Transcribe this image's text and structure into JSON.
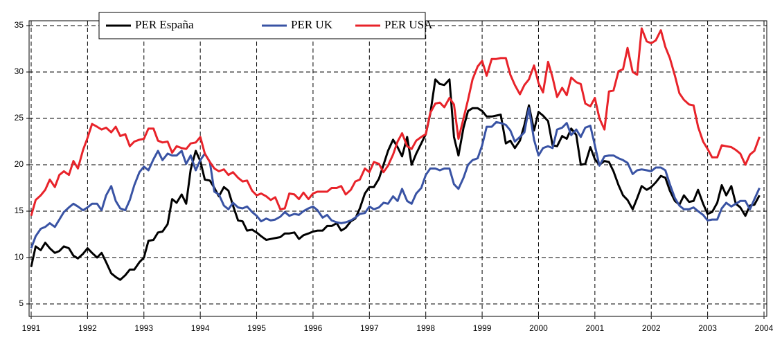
{
  "chart_data": {
    "type": "line",
    "x": [
      1991,
      1991.08,
      1991.17,
      1991.25,
      1991.33,
      1991.42,
      1991.5,
      1991.58,
      1991.67,
      1991.75,
      1991.83,
      1991.92,
      1992,
      1992.08,
      1992.17,
      1992.25,
      1992.33,
      1992.42,
      1992.5,
      1992.58,
      1992.67,
      1992.75,
      1992.83,
      1992.92,
      1993,
      1993.08,
      1993.17,
      1993.25,
      1993.33,
      1993.42,
      1993.5,
      1993.58,
      1993.67,
      1993.75,
      1993.83,
      1993.92,
      1994,
      1994.08,
      1994.17,
      1994.25,
      1994.33,
      1994.42,
      1994.5,
      1994.58,
      1994.67,
      1994.75,
      1994.83,
      1994.92,
      1995,
      1995.08,
      1995.17,
      1995.25,
      1995.33,
      1995.42,
      1995.5,
      1995.58,
      1995.67,
      1995.75,
      1995.83,
      1995.92,
      1996,
      1996.08,
      1996.17,
      1996.25,
      1996.33,
      1996.42,
      1996.5,
      1996.58,
      1996.67,
      1996.75,
      1996.83,
      1996.92,
      1997,
      1997.08,
      1997.17,
      1997.25,
      1997.33,
      1997.42,
      1997.5,
      1997.58,
      1997.67,
      1997.75,
      1997.83,
      1997.92,
      1998,
      1998.08,
      1998.17,
      1998.25,
      1998.33,
      1998.42,
      1998.5,
      1998.58,
      1998.67,
      1998.75,
      1998.83,
      1998.92,
      1999,
      1999.08,
      1999.17,
      1999.25,
      1999.33,
      1999.42,
      1999.5,
      1999.58,
      1999.67,
      1999.75,
      1999.83,
      1999.92,
      2000,
      2000.08,
      2000.17,
      2000.25,
      2000.33,
      2000.42,
      2000.5,
      2000.58,
      2000.67,
      2000.75,
      2000.83,
      2000.92,
      2001,
      2001.08,
      2001.17,
      2001.25,
      2001.33,
      2001.42,
      2001.5,
      2001.58,
      2001.67,
      2001.75,
      2001.83,
      2001.92,
      2002,
      2002.08,
      2002.17,
      2002.25,
      2002.33,
      2002.42,
      2002.5,
      2002.58,
      2002.67,
      2002.75,
      2002.83,
      2002.92,
      2003,
      2003.08,
      2003.17,
      2003.25,
      2003.33,
      2003.42,
      2003.5,
      2003.58,
      2003.67,
      2003.75,
      2003.83,
      2003.92
    ],
    "series": [
      {
        "name": "PER España",
        "color": "#000000",
        "values": [
          9,
          11.2,
          10.8,
          11.6,
          11,
          10.5,
          10.7,
          11.2,
          11,
          10.2,
          9.9,
          10.4,
          11,
          10.5,
          10,
          10.5,
          9.5,
          8.3,
          7.9,
          7.6,
          8.1,
          8.7,
          8.7,
          9.5,
          10,
          11.8,
          11.9,
          12.7,
          12.8,
          13.6,
          16.3,
          15.9,
          16.8,
          15.8,
          19.5,
          21.5,
          20.4,
          18.4,
          18.3,
          17.5,
          16.6,
          17.6,
          17.2,
          15.6,
          14,
          13.9,
          12.9,
          13,
          12.7,
          12.3,
          11.9,
          12,
          12.1,
          12.2,
          12.6,
          12.6,
          12.7,
          12,
          12.4,
          12.6,
          12.8,
          12.9,
          12.9,
          13.4,
          13.4,
          13.7,
          12.9,
          13.2,
          13.9,
          14.2,
          15.3,
          16.9,
          17.6,
          17.6,
          18.5,
          20,
          21.5,
          22.7,
          21.9,
          20.9,
          23,
          20,
          21.2,
          22.3,
          23.3,
          25.5,
          29.2,
          28.7,
          28.6,
          29.2,
          23,
          21,
          24,
          25.8,
          26.1,
          26.1,
          25.8,
          25.2,
          25.2,
          25.3,
          25.4,
          22.3,
          22.6,
          21.8,
          22.6,
          24.3,
          26.4,
          23.7,
          25.7,
          25.3,
          24.7,
          22.1,
          22,
          23.1,
          22.8,
          23.9,
          23.2,
          20,
          20.1,
          21.9,
          20.6,
          20,
          20.4,
          20.3,
          19.3,
          17.8,
          16.7,
          16.2,
          15.2,
          16.4,
          17.7,
          17.3,
          17.6,
          18.1,
          18.8,
          18.6,
          17.2,
          16.1,
          15.7,
          16.7,
          16,
          16.1,
          17.3,
          15.8,
          14.7,
          14.9,
          15.9,
          17.8,
          16.7,
          17.7,
          15.8,
          15.4,
          14.5,
          15.6,
          15.7,
          16.7
        ]
      },
      {
        "name": "PER UK",
        "color": "#3953a4",
        "values": [
          11,
          12.3,
          13.1,
          13.3,
          13.7,
          13.3,
          14.1,
          14.9,
          15.4,
          15.8,
          15.5,
          15.1,
          15.4,
          15.8,
          15.8,
          15.1,
          16.7,
          17.7,
          16.1,
          15.3,
          15.1,
          16.2,
          17.8,
          19.2,
          19.8,
          19.4,
          20.6,
          21.5,
          20.5,
          21.2,
          21,
          21,
          21.5,
          20.1,
          21,
          19.4,
          20.5,
          21.2,
          20.3,
          17.1,
          16.8,
          15.6,
          15.2,
          15.9,
          15.4,
          15.3,
          15.5,
          14.9,
          14.5,
          13.9,
          14.2,
          14,
          14.1,
          14.4,
          14.9,
          14.5,
          14.7,
          14.6,
          15,
          15.3,
          15.5,
          15.1,
          14.3,
          14.6,
          14,
          13.8,
          13.7,
          13.8,
          14,
          14.3,
          14.7,
          14.8,
          15.5,
          15.2,
          15.4,
          15.9,
          15.8,
          16.6,
          16.1,
          17.4,
          16.1,
          15.8,
          16.9,
          17.5,
          18.9,
          19.6,
          19.6,
          19.4,
          19.6,
          19.6,
          17.9,
          17.4,
          18.6,
          20,
          20.5,
          20.7,
          22.1,
          24.1,
          24.1,
          24.6,
          24.5,
          24.3,
          23.7,
          22.5,
          23,
          23.5,
          26.1,
          22.7,
          21,
          21.8,
          22,
          21.8,
          23.8,
          24,
          24.5,
          23.2,
          23.8,
          23,
          24,
          24.2,
          22.1,
          19.9,
          20.9,
          21,
          21,
          20.7,
          20.5,
          20.2,
          19,
          19.4,
          19.5,
          19.4,
          19.3,
          19.7,
          19.7,
          19.4,
          17.9,
          16.4,
          15.6,
          15.2,
          15.2,
          15.4,
          15,
          14.6,
          14,
          14.1,
          14.1,
          15.3,
          15.9,
          15.5,
          15.8,
          16.1,
          16.1,
          15.2,
          16.3,
          17.5
        ]
      },
      {
        "name": "PER USA",
        "color": "#e8232a",
        "values": [
          14.5,
          16.2,
          16.7,
          17.3,
          18.4,
          17.6,
          18.9,
          19.3,
          18.9,
          20.4,
          19.6,
          21.6,
          22.9,
          24.4,
          24.1,
          23.8,
          24,
          23.5,
          24.1,
          23.1,
          23.3,
          22,
          22.5,
          22.7,
          22.8,
          23.9,
          23.9,
          22.6,
          22.4,
          22.5,
          21.3,
          22,
          21.8,
          21.7,
          22.3,
          22.4,
          23,
          21.2,
          20.3,
          19.6,
          19.3,
          19.5,
          18.9,
          19.2,
          18.6,
          18.2,
          18.3,
          17.2,
          16.7,
          16.9,
          16.6,
          16.2,
          16.5,
          15.2,
          15.3,
          16.9,
          16.8,
          16.3,
          17,
          16.3,
          16.9,
          17.1,
          17.1,
          17.1,
          17.5,
          17.5,
          17.7,
          16.8,
          17.3,
          18.2,
          18.4,
          19.6,
          19.2,
          20.3,
          20.1,
          19.2,
          19.9,
          21.1,
          22.5,
          23.4,
          22,
          21.7,
          22.6,
          23,
          23.3,
          25.6,
          26.6,
          26.7,
          26.2,
          27.2,
          26.5,
          22.8,
          25,
          27,
          29.2,
          30.6,
          31.2,
          29.6,
          31.4,
          31.4,
          31.5,
          31.5,
          29.7,
          28.6,
          27.6,
          28.6,
          29.2,
          30.7,
          28.8,
          27.8,
          31.1,
          29.4,
          27.3,
          28.3,
          27.5,
          29.4,
          28.9,
          28.7,
          26.6,
          26.3,
          27.2,
          25,
          23.8,
          27.9,
          28,
          30.1,
          30.3,
          32.6,
          30,
          29.7,
          34.7,
          33.3,
          33.1,
          33.4,
          34.5,
          32.7,
          31.5,
          29.6,
          27.7,
          27,
          26.5,
          26.4,
          24.1,
          22.5,
          21.7,
          20.8,
          20.8,
          22.1,
          22,
          21.9,
          21.6,
          21.2,
          20,
          21.1,
          21.5,
          23
        ]
      }
    ],
    "xlim": [
      1991,
      2004
    ],
    "xticks": [
      1991,
      1992,
      1993,
      1994,
      1995,
      1996,
      1997,
      1998,
      1999,
      2000,
      2001,
      2002,
      2003,
      2004
    ],
    "ylim": [
      5,
      35
    ],
    "yticks": [
      5,
      10,
      15,
      20,
      25,
      30,
      35
    ],
    "grid": true,
    "legend": "top-left"
  }
}
